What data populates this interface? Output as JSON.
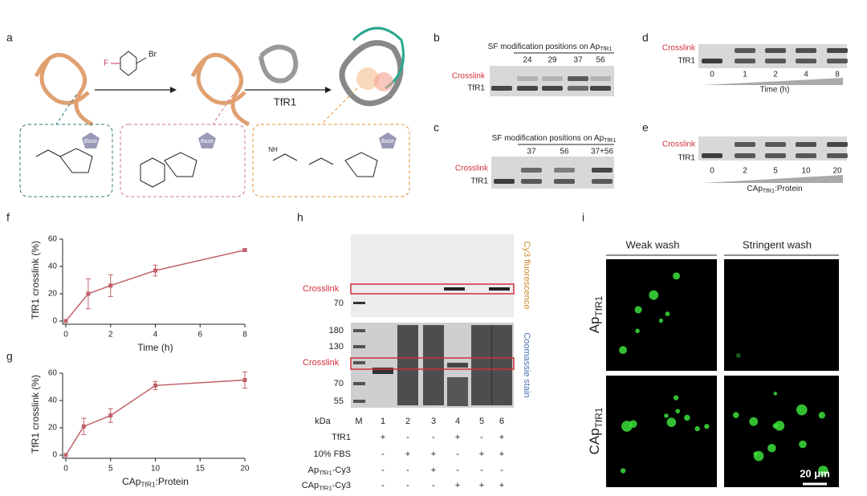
{
  "chart_data": [
    {
      "panel": "f",
      "type": "scatter",
      "x": [
        0,
        1,
        2,
        4,
        8
      ],
      "values": [
        0,
        20,
        26,
        37,
        52
      ],
      "errors": [
        0,
        11,
        8,
        4,
        1
      ],
      "color": "#c0606a",
      "xlim": [
        0,
        8
      ],
      "ylim": [
        0,
        60
      ],
      "xticks": [
        0,
        2,
        4,
        6,
        8
      ],
      "yticks": [
        0,
        20,
        40,
        60
      ],
      "xlabel": "Time (h)",
      "ylabel": "TfR1 crosslink (%)"
    },
    {
      "panel": "g",
      "type": "scatter",
      "x": [
        0,
        2,
        5,
        10,
        20
      ],
      "values": [
        0,
        21,
        29,
        51,
        55
      ],
      "errors": [
        0,
        6,
        5,
        3,
        6
      ],
      "color": "#c0606a",
      "xlim": [
        0,
        20
      ],
      "ylim": [
        0,
        60
      ],
      "xticks": [
        0,
        5,
        10,
        15,
        20
      ],
      "yticks": [
        0,
        20,
        40,
        60
      ],
      "xlabel": {
        "main": "CAp",
        "sub": "TfR1",
        "rest": ":Protein"
      },
      "ylabel": "TfR1 crosslink (%)"
    }
  ],
  "panels": {
    "a": {
      "letter": "a",
      "fluorine": "F",
      "bromine": "Br",
      "protein": "TfR1",
      "bases": [
        "Base",
        "Base",
        "Base"
      ],
      "amine": "NH"
    },
    "b": {
      "letter": "b",
      "title": {
        "main": "SF modification positions on Ap",
        "sub": "TfR1"
      },
      "lanes": [
        "24",
        "29",
        "37",
        "56"
      ],
      "bands": [
        "Crosslink",
        "TfR1"
      ]
    },
    "c": {
      "letter": "c",
      "title": {
        "main": "SF modification positions on Ap",
        "sub": "TfR1"
      },
      "lanes": [
        "37",
        "56",
        "37+56"
      ],
      "bands": [
        "Crosslink",
        "TfR1"
      ]
    },
    "d": {
      "letter": "d",
      "bands": [
        "Crosslink",
        "TfR1"
      ],
      "lanes": [
        "0",
        "1",
        "2",
        "4",
        "8"
      ],
      "axis": "Time (h)"
    },
    "e": {
      "letter": "e",
      "bands": [
        "Crosslink",
        "TfR1"
      ],
      "lanes": [
        "0",
        "2",
        "5",
        "10",
        "20"
      ],
      "axis": {
        "main": "CAp",
        "sub": "TfR1",
        "rest": ":Protein"
      }
    },
    "h": {
      "letter": "h",
      "stains": [
        "Cy3 fluorescence",
        "Coomassie stain"
      ],
      "crosslink": [
        "Crosslink",
        "Crosslink"
      ],
      "markers_top": [
        "70"
      ],
      "markers_bottom": [
        "180",
        "130",
        "70",
        "55"
      ],
      "header": [
        "kDa",
        "M",
        "1",
        "2",
        "3",
        "4",
        "5",
        "6"
      ],
      "rows": [
        {
          "label": "TfR1",
          "marks": [
            "+",
            "-",
            "-",
            "+",
            "-",
            "+"
          ]
        },
        {
          "label": "10% FBS",
          "marks": [
            "-",
            "+",
            "+",
            "-",
            "+",
            "+"
          ]
        },
        {
          "label": {
            "main": "Ap",
            "sub": "TfR1",
            "rest": "-Cy3"
          },
          "marks": [
            "-",
            "-",
            "+",
            "-",
            "-",
            "-"
          ]
        },
        {
          "label": {
            "main": "CAp",
            "sub": "TfR1",
            "rest": "-Cy3"
          },
          "marks": [
            "-",
            "-",
            "-",
            "+",
            "+",
            "+"
          ]
        }
      ]
    },
    "i": {
      "letter": "i",
      "columns": [
        "Weak wash",
        "Stringent wash"
      ],
      "rows": [
        {
          "main": "Ap",
          "sub": "TfR1"
        },
        {
          "main": "CAp",
          "sub": "TfR1"
        }
      ],
      "scale": "20 μm"
    }
  }
}
